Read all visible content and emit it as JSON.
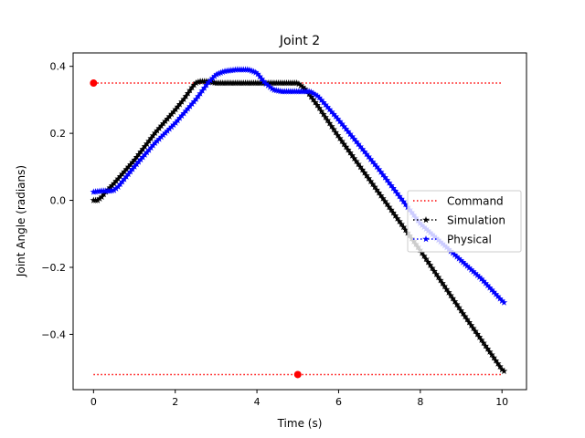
{
  "chart_data": {
    "type": "line",
    "title": "Joint 2",
    "xlabel": "Time (s)",
    "ylabel": "Joint Angle (radians)",
    "xlim": [
      -0.5,
      10.6
    ],
    "ylim": [
      -0.565,
      0.44
    ],
    "x_ticks": [
      0,
      2,
      4,
      6,
      8,
      10
    ],
    "y_ticks": [
      0.4,
      0.2,
      0.0,
      -0.2,
      -0.4
    ],
    "x_tick_labels": [
      "0",
      "2",
      "4",
      "6",
      "8",
      "10"
    ],
    "y_tick_labels": [
      "0.4",
      "0.2",
      "0.0",
      "−0.2",
      "−0.4"
    ],
    "grid": false,
    "legend_position": "center-right",
    "series": [
      {
        "name": "Command",
        "style": "dotted",
        "color": "#ff0000",
        "marker": "circle-at-start",
        "segments": [
          {
            "x": [
              0,
              10
            ],
            "y": [
              0.35,
              0.35
            ],
            "marker_x": 0
          },
          {
            "x": [
              0,
              10
            ],
            "y": [
              -0.52,
              -0.52
            ],
            "marker_x": 5
          }
        ]
      },
      {
        "name": "Simulation",
        "style": "dotted",
        "color": "#000000",
        "marker": "star",
        "x_start": 0,
        "x_end": 10.05,
        "points": [
          [
            0.0,
            0.0
          ],
          [
            0.1,
            0.0
          ],
          [
            0.2,
            0.01
          ],
          [
            0.3,
            0.025
          ],
          [
            0.5,
            0.05
          ],
          [
            1.0,
            0.12
          ],
          [
            1.5,
            0.2
          ],
          [
            2.0,
            0.27
          ],
          [
            2.2,
            0.3
          ],
          [
            2.4,
            0.335
          ],
          [
            2.5,
            0.35
          ],
          [
            2.6,
            0.355
          ],
          [
            2.8,
            0.355
          ],
          [
            3.0,
            0.35
          ],
          [
            4.0,
            0.35
          ],
          [
            5.0,
            0.35
          ],
          [
            5.2,
            0.33
          ],
          [
            5.5,
            0.28
          ],
          [
            6.0,
            0.19
          ],
          [
            7.0,
            0.02
          ],
          [
            8.0,
            -0.15
          ],
          [
            9.0,
            -0.33
          ],
          [
            10.0,
            -0.505
          ],
          [
            10.05,
            -0.51
          ]
        ]
      },
      {
        "name": "Physical",
        "style": "dotted",
        "color": "#0000ff",
        "marker": "star",
        "x_start": 0,
        "x_end": 10.05,
        "points": [
          [
            0.0,
            0.025
          ],
          [
            0.2,
            0.028
          ],
          [
            0.4,
            0.028
          ],
          [
            0.5,
            0.03
          ],
          [
            0.6,
            0.04
          ],
          [
            0.8,
            0.07
          ],
          [
            1.0,
            0.1
          ],
          [
            1.5,
            0.17
          ],
          [
            2.0,
            0.23
          ],
          [
            2.5,
            0.3
          ],
          [
            2.8,
            0.35
          ],
          [
            3.0,
            0.375
          ],
          [
            3.2,
            0.385
          ],
          [
            3.5,
            0.39
          ],
          [
            3.8,
            0.39
          ],
          [
            4.0,
            0.38
          ],
          [
            4.2,
            0.35
          ],
          [
            4.4,
            0.33
          ],
          [
            4.6,
            0.325
          ],
          [
            5.0,
            0.325
          ],
          [
            5.3,
            0.325
          ],
          [
            5.5,
            0.31
          ],
          [
            6.0,
            0.24
          ],
          [
            7.0,
            0.09
          ],
          [
            8.0,
            -0.07
          ],
          [
            9.0,
            -0.18
          ],
          [
            9.5,
            -0.235
          ],
          [
            10.0,
            -0.3
          ],
          [
            10.05,
            -0.305
          ]
        ]
      }
    ]
  },
  "legend": {
    "entries": [
      "Command",
      "Simulation",
      "Physical"
    ]
  }
}
